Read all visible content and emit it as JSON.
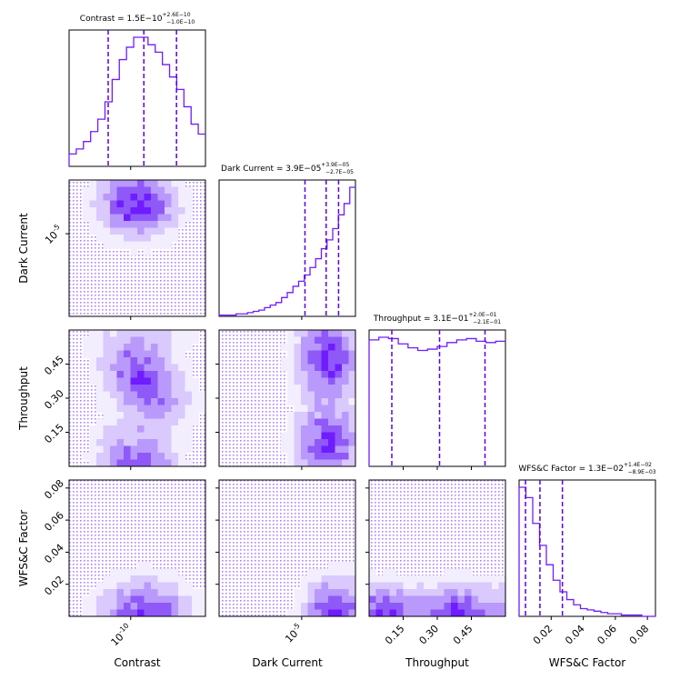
{
  "figure": {
    "accent": "#6f1cff",
    "dark_purple": "#5a00e6",
    "fill_colors": [
      "#f3eefe",
      "#d9c9fd",
      "#b999fb",
      "#8f59f8",
      "#6f1cff"
    ]
  },
  "chart_data": {
    "type": "corner",
    "parameters": [
      {
        "key": "contrast",
        "label": "Contrast",
        "scale": "log",
        "range": [
          1.5e-11,
          1e-09
        ],
        "ticks": [
          {
            "value": 1e-10,
            "label": "10^{-10}"
          }
        ],
        "title": "Contrast = 1.5E−10",
        "title_sup": "+2.6E−10",
        "title_sub": "−1.0E−10",
        "quantiles": [
          5e-11,
          1.5e-10,
          4.1e-10
        ],
        "histogram": [
          5,
          7,
          10,
          14,
          19,
          26,
          35,
          43,
          48,
          52,
          52,
          49,
          46,
          41,
          36,
          31,
          24,
          17,
          13
        ]
      },
      {
        "key": "dark_current",
        "label": "Dark Current",
        "scale": "log",
        "range": [
          1e-07,
          0.0002
        ],
        "ticks": [
          {
            "value": 1e-05,
            "label": "10^{-5}"
          }
        ],
        "title": "Dark Current = 3.9E−05",
        "title_sup": "+3.9E−05",
        "title_sub": "−2.7E−05",
        "quantiles": [
          1.2e-05,
          3.9e-05,
          7.8e-05
        ],
        "histogram": [
          1,
          1,
          1,
          2,
          2,
          3,
          4,
          5,
          7,
          9,
          11,
          15,
          19,
          24,
          28,
          33,
          39,
          46,
          54,
          61,
          70,
          81,
          90,
          103
        ]
      },
      {
        "key": "throughput",
        "label": "Throughput",
        "scale": "linear",
        "range": [
          0.0,
          0.6
        ],
        "ticks": [
          {
            "value": 0.15,
            "label": "0.15"
          },
          {
            "value": 0.3,
            "label": "0.30"
          },
          {
            "value": 0.45,
            "label": "0.45"
          }
        ],
        "title": "Throughput = 3.1E−01",
        "title_sup": "+2.0E−01",
        "title_sub": "−2.1E−01",
        "quantiles": [
          0.1,
          0.31,
          0.51
        ],
        "histogram": [
          96,
          98,
          97,
          93,
          90,
          88,
          89,
          91,
          94,
          96,
          97,
          95,
          94,
          95
        ]
      },
      {
        "key": "wfsc_factor",
        "label": "WFS&C Factor",
        "scale": "linear",
        "range": [
          0.0,
          0.085
        ],
        "ticks": [
          {
            "value": 0.02,
            "label": "0.02"
          },
          {
            "value": 0.04,
            "label": "0.04"
          },
          {
            "value": 0.06,
            "label": "0.06"
          },
          {
            "value": 0.08,
            "label": "0.08"
          }
        ],
        "title": "WFS&C Factor = 1.3E−02",
        "title_sup": "+1.4E−02",
        "title_sub": "−8.9E−03",
        "quantiles": [
          0.004,
          0.013,
          0.027
        ],
        "histogram": [
          100,
          92,
          72,
          55,
          40,
          28,
          19,
          13,
          9,
          6,
          5,
          4,
          3,
          2,
          2,
          1,
          1,
          1,
          0,
          0
        ]
      }
    ]
  }
}
